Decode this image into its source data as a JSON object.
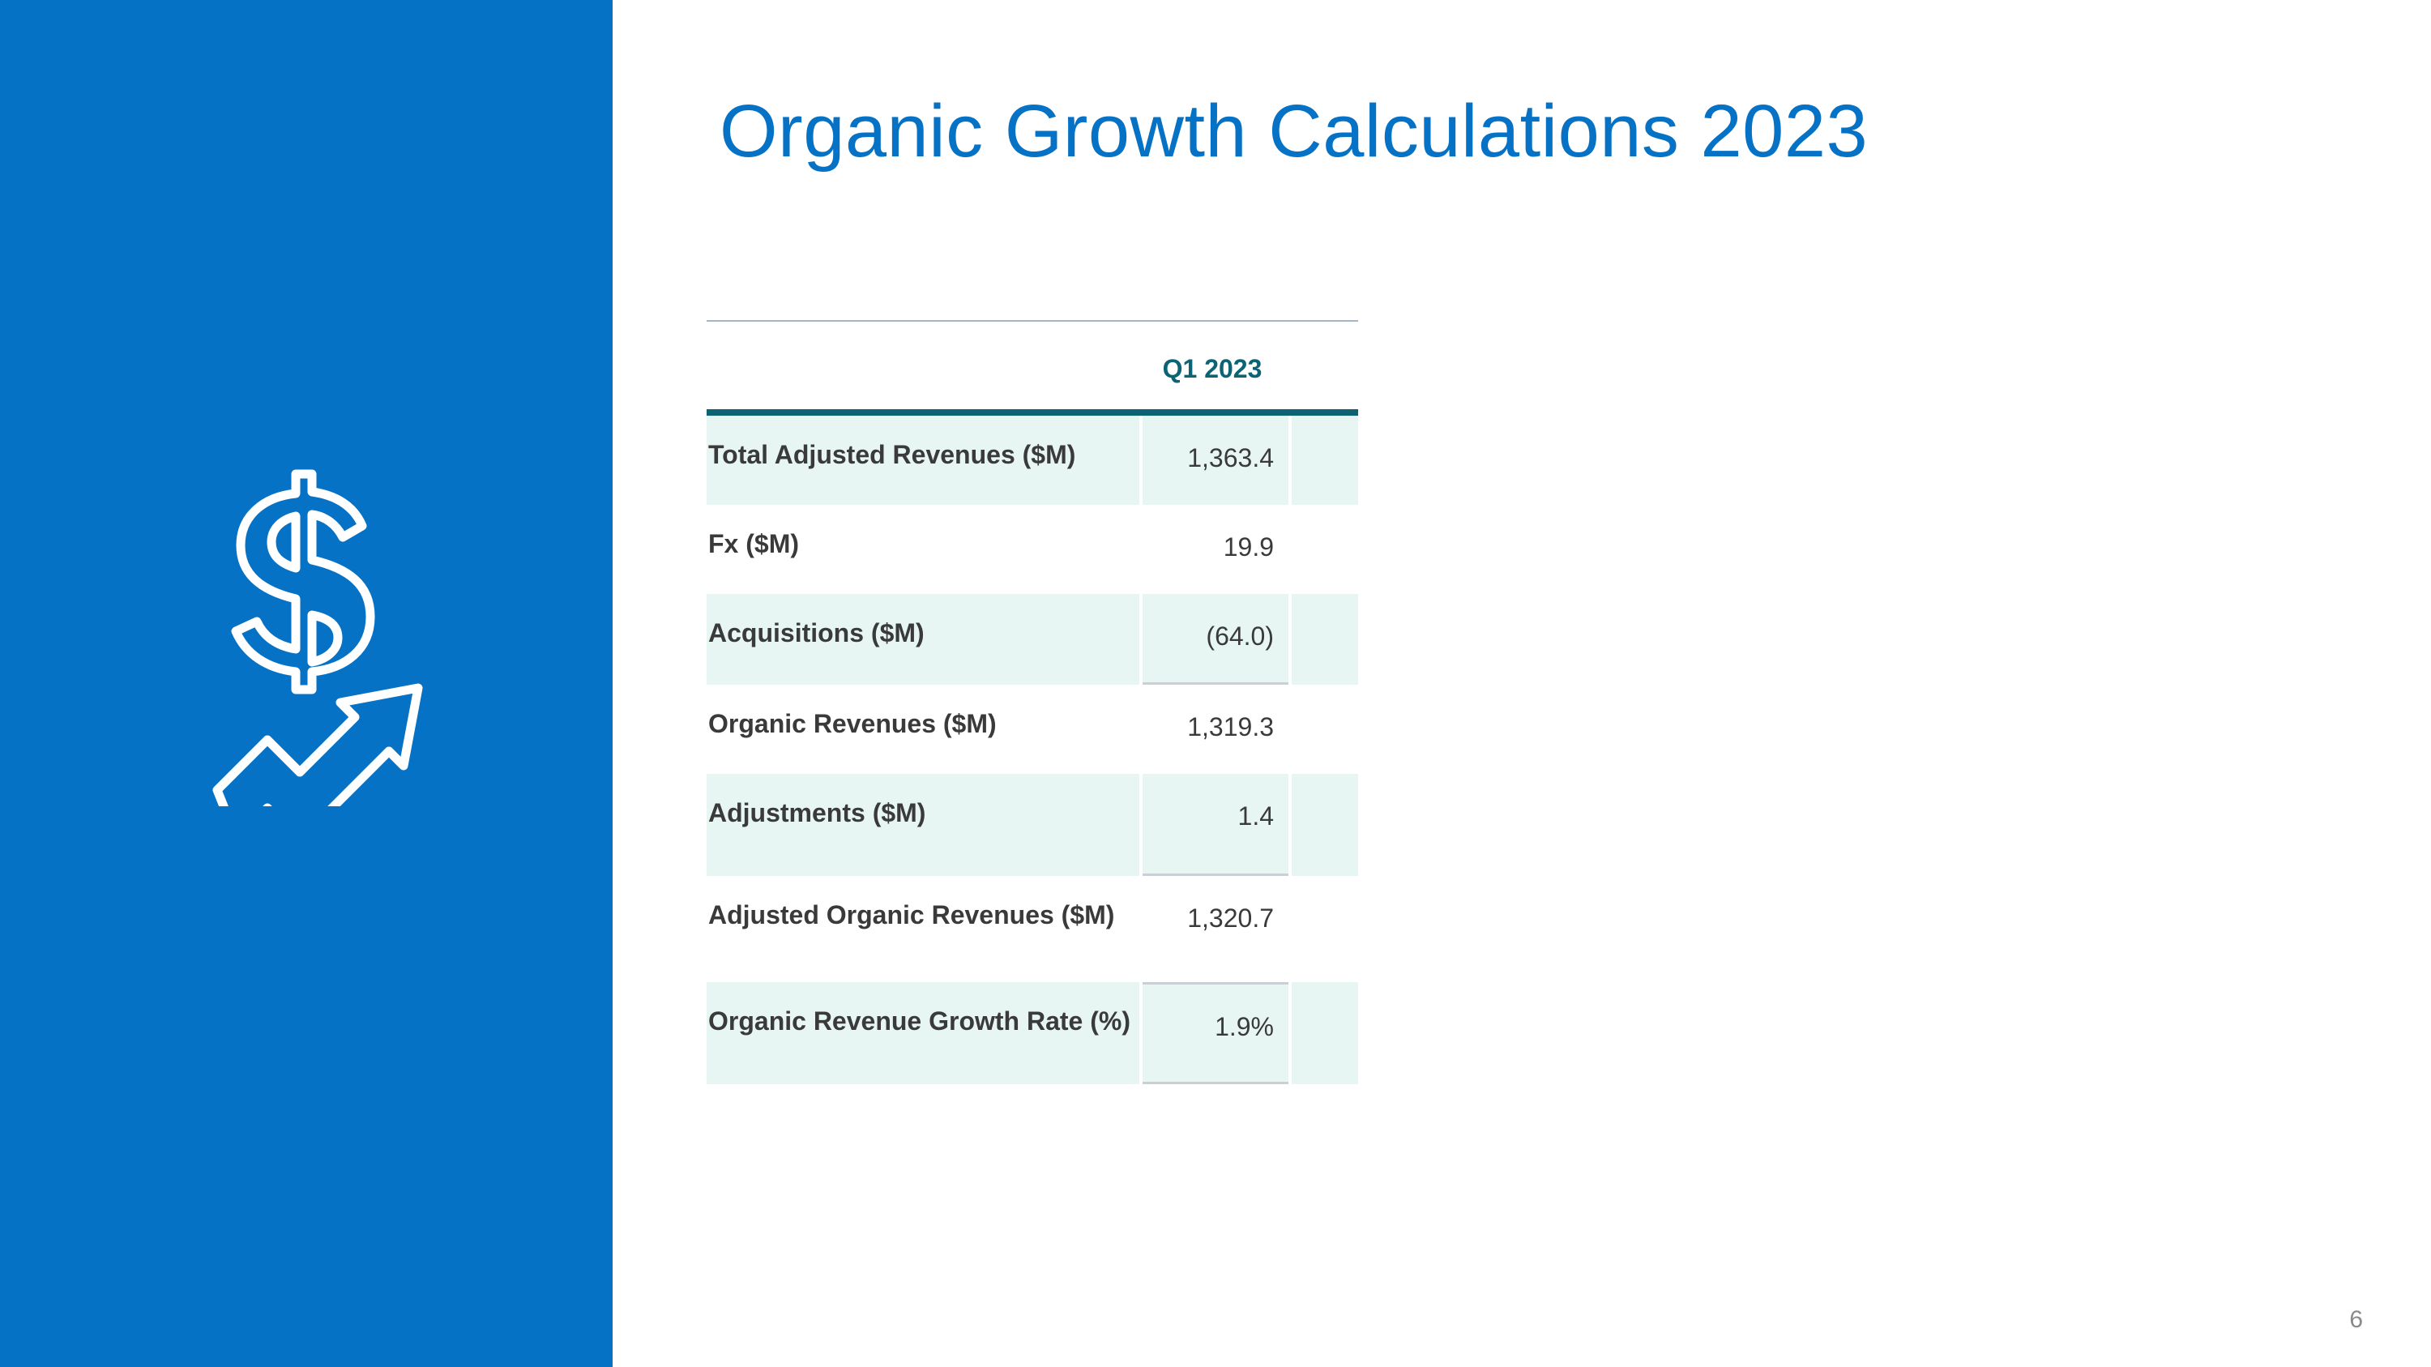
{
  "slide": {
    "title": "Organic Growth Calculations 2023",
    "page_number": "6"
  },
  "sidebar": {
    "icon": "dollar-growth-arrow-icon",
    "background_color": "#0672c6"
  },
  "table": {
    "column_header": "Q1 2023",
    "rows": [
      {
        "label": "Total Adjusted Revenues ($M)",
        "value": "1,363.4"
      },
      {
        "label": "Fx ($M)",
        "value": "19.9"
      },
      {
        "label": "Acquisitions ($M)",
        "value": "(64.0)"
      },
      {
        "label": "Organic Revenues ($M)",
        "value": "1,319.3"
      },
      {
        "label": "Adjustments ($M)",
        "value": "1.4"
      },
      {
        "label": "Adjusted Organic Revenues ($M)",
        "value": "1,320.7"
      },
      {
        "label": "Organic Revenue Growth Rate (%)",
        "value": "1.9%"
      }
    ]
  },
  "colors": {
    "accent": "#0672c6",
    "table_header": "#0b6373",
    "row_shade": "#e7f6f3"
  }
}
